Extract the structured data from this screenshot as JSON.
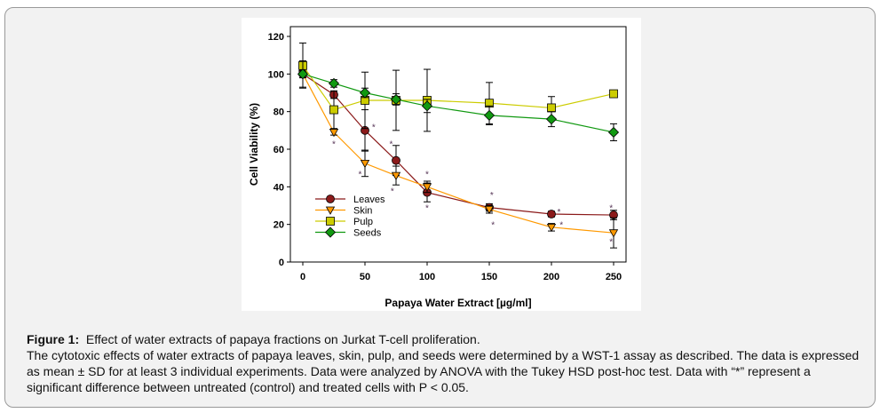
{
  "chart_data": {
    "type": "line",
    "xlabel": "Papaya Water Extract [µg/ml]",
    "ylabel": "Cell Viability (%)",
    "xlim": [
      -10,
      265
    ],
    "ylim": [
      0,
      120
    ],
    "xticks": [
      0,
      50,
      100,
      150,
      200,
      250
    ],
    "yticks": [
      0,
      20,
      40,
      60,
      80,
      100,
      120
    ],
    "x": [
      0,
      25,
      50,
      75,
      100,
      150,
      200,
      250
    ],
    "legend": "lower-left",
    "series": [
      {
        "name": "Leaves",
        "color": "#8b1a1a",
        "marker": "circle",
        "values": [
          100,
          89,
          70,
          54,
          37,
          29,
          25.5,
          25
        ],
        "errors": [
          2,
          2,
          11,
          8,
          5,
          2,
          1.5,
          2.5
        ]
      },
      {
        "name": "Skin",
        "color": "#ff9900",
        "marker": "triangle-down",
        "values": [
          100,
          69,
          52.5,
          46,
          40,
          28,
          18.5,
          15.5
        ],
        "errors": [
          2,
          1.5,
          7,
          5,
          3,
          2,
          2,
          8
        ]
      },
      {
        "name": "Pulp",
        "color": "#cccc00",
        "marker": "square",
        "values": [
          104.5,
          81,
          86,
          86,
          86,
          84.5,
          82,
          89.5
        ],
        "errors": [
          12,
          10,
          15,
          16,
          16.5,
          11,
          6,
          1.5
        ]
      },
      {
        "name": "Seeds",
        "color": "#119911",
        "marker": "diamond",
        "values": [
          100,
          95,
          90,
          86.5,
          83,
          78,
          76,
          69
        ],
        "errors": [
          7,
          2,
          2.5,
          3,
          3.5,
          5,
          4,
          4.5
        ]
      }
    ],
    "annotations": [
      {
        "text": "*",
        "x": 25,
        "y": 63
      },
      {
        "text": "*",
        "x": 57,
        "y": 72
      },
      {
        "text": "*",
        "x": 71,
        "y": 63
      },
      {
        "text": "*",
        "x": 46,
        "y": 47
      },
      {
        "text": "*",
        "x": 72,
        "y": 38
      },
      {
        "text": "*",
        "x": 100,
        "y": 47
      },
      {
        "text": "*",
        "x": 100,
        "y": 29
      },
      {
        "text": "*",
        "x": 152,
        "y": 36
      },
      {
        "text": "*",
        "x": 153,
        "y": 20
      },
      {
        "text": "*",
        "x": 206,
        "y": 27
      },
      {
        "text": "*",
        "x": 208,
        "y": 20
      },
      {
        "text": "*",
        "x": 248,
        "y": 29
      },
      {
        "text": "*",
        "x": 248,
        "y": 11
      }
    ]
  },
  "caption": {
    "label": "Figure 1:",
    "title": "Effect of water extracts of papaya fractions on Jurkat T-cell proliferation.",
    "body": "The cytotoxic effects of water extracts of papaya leaves, skin, pulp, and seeds were determined by a WST-1 assay as described. The data is expressed as mean ± SD for at least 3 individual experiments. Data were analyzed by ANOVA with the Tukey HSD post-hoc test. Data with “*” represent a significant difference between untreated (control) and treated cells with P < 0.05."
  }
}
